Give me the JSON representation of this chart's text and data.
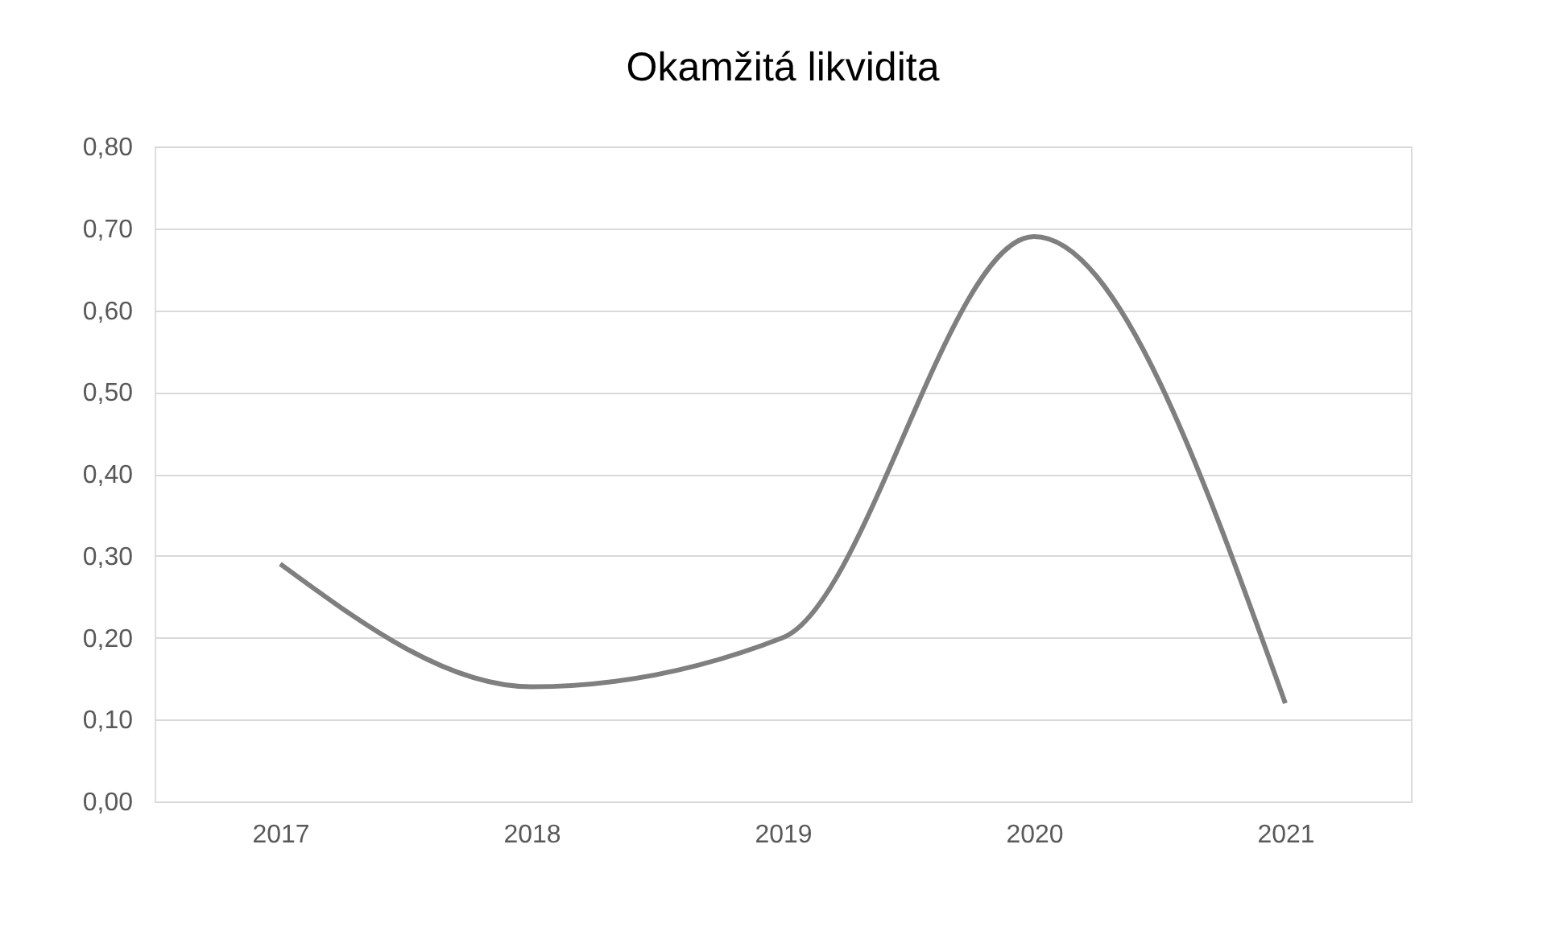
{
  "chart_data": {
    "type": "line",
    "title": "Okamžitá likvidita",
    "categories": [
      "2017",
      "2018",
      "2019",
      "2020",
      "2021"
    ],
    "series": [
      {
        "color": "#7f7f7f",
        "values": [
          0.29,
          0.14,
          0.2,
          0.69,
          0.12
        ]
      }
    ],
    "ylim": [
      0,
      0.8
    ],
    "yticks": [
      {
        "value": 0,
        "label": "0,00"
      },
      {
        "value": 0.1,
        "label": "0,10"
      },
      {
        "value": 0.2,
        "label": "0,20"
      },
      {
        "value": 0.3,
        "label": "0,30"
      },
      {
        "value": 0.4,
        "label": "0,40"
      },
      {
        "value": 0.5,
        "label": "0,50"
      },
      {
        "value": 0.6,
        "label": "0,60"
      },
      {
        "value": 0.7,
        "label": "0,70"
      },
      {
        "value": 0.8,
        "label": "0,80"
      }
    ],
    "grid": "y",
    "marker": "none",
    "line_style": "solid"
  }
}
